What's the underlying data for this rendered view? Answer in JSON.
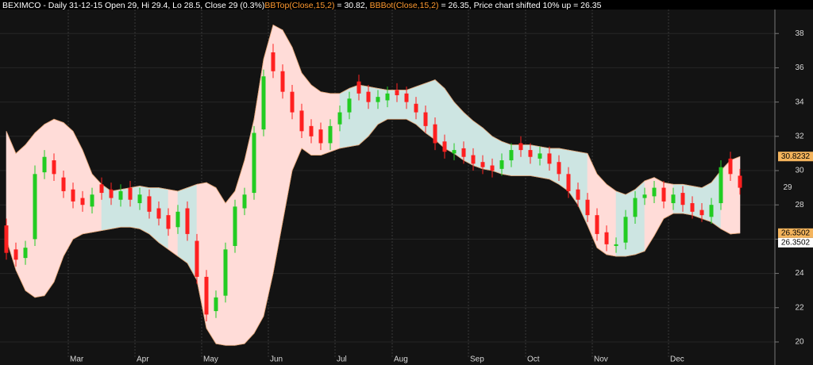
{
  "chart_data": {
    "type": "candlestick",
    "title": "BEXIMCO - Daily 31-12-15 Open 29, Hi 29.4, Lo 28.5, Close 29 (0.3%)",
    "top_name": "BBTop(Close,15,2)",
    "top_text": " = 30.82, ",
    "bot_name": "BBBot(Close,15,2)",
    "bot_text": " = 26.35, Price chart shifted 10% up = 26.35",
    "categories": [
      null,
      null,
      null,
      null,
      null,
      null,
      null,
      "Mar",
      null,
      null,
      null,
      null,
      null,
      null,
      "Apr",
      null,
      null,
      null,
      null,
      null,
      null,
      "May",
      null,
      null,
      null,
      null,
      null,
      null,
      "Jun",
      null,
      null,
      null,
      null,
      null,
      null,
      "Jul",
      null,
      null,
      null,
      null,
      null,
      "Aug",
      null,
      null,
      null,
      null,
      null,
      null,
      null,
      "Sep",
      null,
      null,
      null,
      null,
      null,
      "Oct",
      null,
      null,
      null,
      null,
      null,
      null,
      "Nov",
      null,
      null,
      null,
      null,
      null,
      null,
      null,
      "Dec",
      null,
      null,
      null,
      null,
      null,
      null,
      null
    ],
    "open": [
      26.8,
      25.4,
      24.9,
      26.0,
      29.9,
      30.6,
      29.6,
      28.9,
      28.4,
      27.9,
      29.2,
      28.9,
      28.3,
      29.0,
      28.1,
      28.5,
      27.8,
      27.4,
      26.7,
      27.8,
      25.9,
      23.8,
      21.8,
      22.7,
      25.6,
      27.8,
      28.7,
      32.4,
      36.9,
      35.8,
      34.6,
      33.5,
      32.6,
      32.4,
      31.6,
      32.7,
      33.4,
      35.2,
      34.6,
      34.0,
      34.1,
      34.7,
      34.5,
      33.9,
      33.4,
      32.7,
      31.7,
      31.0,
      31.3,
      30.9,
      30.5,
      30.3,
      30.1,
      30.6,
      31.6,
      31.2,
      30.7,
      31.0,
      30.5,
      29.8,
      28.9,
      28.3,
      27.4,
      26.4,
      25.6,
      25.8,
      27.3,
      28.4,
      28.5,
      29.0,
      28.1,
      28.7,
      28.1,
      27.7,
      27.3,
      28.1,
      30.7,
      29.7
    ],
    "high": [
      27.2,
      25.8,
      25.9,
      30.3,
      31.2,
      31.0,
      30.0,
      29.3,
      28.8,
      29.0,
      29.6,
      29.3,
      29.2,
      29.4,
      29.0,
      28.9,
      28.2,
      27.8,
      28.0,
      28.2,
      26.3,
      24.2,
      23.0,
      25.8,
      28.3,
      29.0,
      32.6,
      35.9,
      37.4,
      36.2,
      35.0,
      33.9,
      33.0,
      32.8,
      33.0,
      33.8,
      34.6,
      35.6,
      35.0,
      34.7,
      34.9,
      35.1,
      34.9,
      34.3,
      33.8,
      33.1,
      32.1,
      31.6,
      31.7,
      31.3,
      30.9,
      30.7,
      31.0,
      31.6,
      32.0,
      31.6,
      31.4,
      31.4,
      30.9,
      30.2,
      29.3,
      28.7,
      27.8,
      26.8,
      26.1,
      27.7,
      28.8,
      29.0,
      29.4,
      29.4,
      29.0,
      29.1,
      28.5,
      28.1,
      28.4,
      30.6,
      31.1,
      30.1
    ],
    "low": [
      24.8,
      24.4,
      24.5,
      25.6,
      29.5,
      29.4,
      28.4,
      27.8,
      27.6,
      27.5,
      28.3,
      28.0,
      27.9,
      27.9,
      27.7,
      27.2,
      26.8,
      26.2,
      26.3,
      25.9,
      23.4,
      21.2,
      21.4,
      22.3,
      25.2,
      27.4,
      28.3,
      32.0,
      35.4,
      34.2,
      33.0,
      31.9,
      31.6,
      31.2,
      31.2,
      32.3,
      33.0,
      34.1,
      33.6,
      33.6,
      33.7,
      34.0,
      33.6,
      33.0,
      32.2,
      31.2,
      30.7,
      30.6,
      30.4,
      30.0,
      29.8,
      29.6,
      29.7,
      30.2,
      30.8,
      30.4,
      30.3,
      30.0,
      29.4,
      28.4,
      27.9,
      27.0,
      25.9,
      25.3,
      25.2,
      25.4,
      26.9,
      28.0,
      28.1,
      27.8,
      27.7,
      27.6,
      27.2,
      27.0,
      26.9,
      27.7,
      29.4,
      28.6
    ],
    "close": [
      25.2,
      24.8,
      25.5,
      29.8,
      30.8,
      29.8,
      28.8,
      28.2,
      28.0,
      28.6,
      28.7,
      28.4,
      28.8,
      28.3,
      28.6,
      27.6,
      27.2,
      26.6,
      27.6,
      26.3,
      23.8,
      21.6,
      22.6,
      25.4,
      27.9,
      28.6,
      32.2,
      35.5,
      35.8,
      34.6,
      33.4,
      32.3,
      32.0,
      31.6,
      32.6,
      33.4,
      34.2,
      34.5,
      34.0,
      34.3,
      34.5,
      34.4,
      34.0,
      33.4,
      32.6,
      31.6,
      31.1,
      31.2,
      30.8,
      30.4,
      30.2,
      30.0,
      30.6,
      31.2,
      31.2,
      30.8,
      31.0,
      30.4,
      29.8,
      28.8,
      28.3,
      27.4,
      26.3,
      25.7,
      25.7,
      27.3,
      28.4,
      28.6,
      29.0,
      28.2,
      28.6,
      28.0,
      27.6,
      27.4,
      28.0,
      30.2,
      29.8,
      29.0
    ],
    "upper": [
      32.3,
      31.0,
      31.5,
      32.2,
      32.7,
      33.0,
      32.8,
      32.3,
      31.2,
      29.8,
      29.2,
      28.8,
      28.9,
      29.0,
      29.1,
      29.0,
      29.0,
      28.9,
      28.8,
      29.0,
      29.2,
      29.3,
      29.0,
      28.1,
      28.8,
      30.6,
      33.0,
      36.5,
      38.5,
      38.2,
      37.2,
      35.7,
      35.0,
      34.6,
      34.5,
      34.5,
      34.8,
      35.0,
      34.9,
      34.8,
      34.7,
      34.7,
      34.7,
      34.9,
      35.1,
      35.3,
      34.8,
      34.0,
      33.4,
      32.9,
      32.5,
      32.0,
      31.7,
      31.5,
      31.5,
      31.5,
      31.4,
      31.3,
      31.3,
      31.2,
      31.1,
      31.0,
      29.8,
      29.2,
      28.8,
      28.6,
      28.9,
      29.4,
      29.6,
      29.3,
      29.2,
      29.2,
      29.1,
      29.0,
      29.3,
      30.0,
      30.6,
      30.82
    ],
    "lower": [
      26.0,
      24.2,
      23.0,
      22.6,
      22.7,
      23.5,
      25.0,
      26.0,
      26.3,
      26.4,
      26.5,
      26.6,
      26.7,
      26.7,
      26.6,
      26.3,
      25.8,
      25.4,
      25.0,
      24.6,
      23.6,
      20.8,
      19.9,
      19.8,
      19.8,
      19.9,
      20.5,
      21.5,
      24.0,
      27.0,
      30.0,
      31.3,
      30.9,
      30.9,
      31.1,
      31.3,
      31.4,
      31.5,
      32.0,
      32.7,
      33.0,
      33.0,
      33.0,
      32.7,
      32.2,
      31.8,
      31.3,
      31.0,
      30.6,
      30.3,
      30.1,
      30.0,
      29.8,
      29.7,
      29.7,
      29.7,
      29.6,
      29.5,
      29.2,
      28.8,
      28.0,
      26.8,
      25.5,
      25.1,
      25.0,
      25.0,
      25.1,
      25.3,
      26.2,
      27.2,
      27.5,
      27.5,
      27.4,
      27.2,
      27.0,
      26.6,
      26.3,
      26.35
    ],
    "band_fill": [
      "#ffdcd8",
      "#ffdcd8",
      "#ffdcd8",
      "#ffdcd8",
      "#ffdcd8",
      "#ffdcd8",
      "#ffdcd8",
      "#ffdcd8",
      "#ffdcd8",
      "#ffdcd8",
      "#cde5e2",
      "#cde5e2",
      "#cde5e2",
      "#cde5e2",
      "#cde5e2",
      "#cde5e2",
      "#cde5e2",
      "#ffdcd8",
      "#cde5e2",
      "#cde5e2",
      "#ffdcd8",
      "#ffdcd8",
      "#ffdcd8",
      "#ffdcd8",
      "#ffdcd8",
      "#ffdcd8",
      "#ffdcd8",
      "#ffdcd8",
      "#ffdcd8",
      "#ffdcd8",
      "#ffdcd8",
      "#ffdcd8",
      "#ffdcd8",
      "#ffdcd8",
      "#ffdcd8",
      "#cde5e2",
      "#cde5e2",
      "#cde5e2",
      "#cde5e2",
      "#cde5e2",
      "#cde5e2",
      "#cde5e2",
      "#cde5e2",
      "#cde5e2",
      "#cde5e2",
      "#cde5e2",
      "#cde5e2",
      "#cde5e2",
      "#cde5e2",
      "#cde5e2",
      "#cde5e2",
      "#cde5e2",
      "#cde5e2",
      "#cde5e2",
      "#cde5e2",
      "#cde5e2",
      "#cde5e2",
      "#cde5e2",
      "#cde5e2",
      "#cde5e2",
      "#cde5e2",
      "#ffdcd8",
      "#ffdcd8",
      "#ffdcd8",
      "#cde5e2",
      "#cde5e2",
      "#cde5e2",
      "#ffdcd8",
      "#ffdcd8",
      "#ffdcd8",
      "#cde5e2",
      "#cde5e2",
      "#cde5e2",
      "#cde5e2",
      "#cde5e2",
      "#ffdcd8",
      "#ffdcd8",
      "#ffdcd8"
    ],
    "up_color": "#22cc22",
    "down_color": "#ff2020",
    "band_edge_color": "#e0a070",
    "ylim": [
      19.35,
      39.4
    ],
    "yticks": [
      20,
      22,
      24,
      26,
      28,
      30,
      32,
      34,
      36,
      38
    ],
    "grid": true,
    "axis_markers": [
      {
        "value": 30.8232,
        "bg": "#f4b45c"
      },
      {
        "value": 29,
        "bg": null
      },
      {
        "value": 26.3502,
        "bg": "#f4b45c"
      },
      {
        "value": 26.3502,
        "bg": "#ffffff"
      }
    ]
  }
}
